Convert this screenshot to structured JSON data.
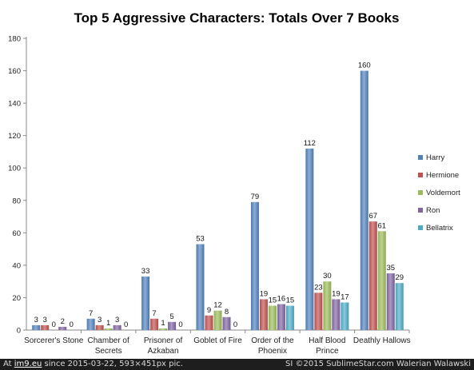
{
  "chart_data": {
    "type": "bar",
    "title": "Top 5 Aggressive Characters: Totals Over 7 Books",
    "categories": [
      "Sorcerer's Stone",
      "Chamber of Secrets",
      "Prisoner of Azkaban",
      "Goblet of Fire",
      "Order of the Phoenix",
      "Half Blood Prince",
      "Deathly Hallows"
    ],
    "category_lines": [
      [
        "Sorcerer's Stone"
      ],
      [
        "Chamber of",
        "Secrets"
      ],
      [
        "Prisoner of",
        "Azkaban"
      ],
      [
        "Goblet of Fire"
      ],
      [
        "Order of the",
        "Phoenix"
      ],
      [
        "Half Blood",
        "Prince"
      ],
      [
        "Deathly Hallows"
      ]
    ],
    "series": [
      {
        "name": "Harry",
        "color": "#4f81bd",
        "values": [
          3,
          7,
          33,
          53,
          79,
          112,
          160
        ]
      },
      {
        "name": "Hermione",
        "color": "#c0504d",
        "values": [
          3,
          3,
          7,
          9,
          19,
          23,
          67
        ]
      },
      {
        "name": "Voldemort",
        "color": "#9bbb59",
        "values": [
          0,
          1,
          1,
          12,
          15,
          30,
          61
        ]
      },
      {
        "name": "Ron",
        "color": "#8064a2",
        "values": [
          2,
          3,
          5,
          8,
          16,
          19,
          35
        ]
      },
      {
        "name": "Bellatrix",
        "color": "#4bacc6",
        "values": [
          0,
          0,
          0,
          0,
          15,
          17,
          29
        ]
      }
    ],
    "ylim": [
      0,
      180
    ],
    "yticks": [
      0,
      20,
      40,
      60,
      80,
      100,
      120,
      140,
      160,
      180
    ],
    "grid": false,
    "legend_position": "right",
    "xlabel": "",
    "ylabel": ""
  },
  "footer": {
    "prefix": "At ",
    "site": "im9.eu",
    "middle": " since 2015-03-22, 593×451px pic.",
    "right": "SI ©2015 SublimeStar.com Walerian Walawski"
  }
}
